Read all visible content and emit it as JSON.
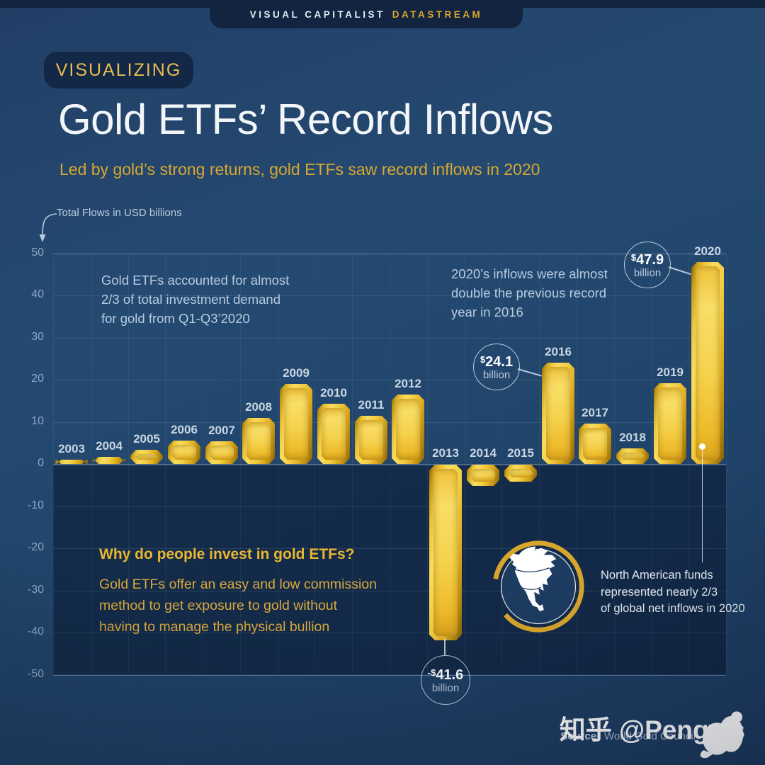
{
  "masthead": {
    "brand": "VISUAL CAPITALIST",
    "suffix": "DATASTREAM"
  },
  "header": {
    "badge": "VISUALIZING",
    "title": "Gold ETFs’ Record Inflows",
    "subtitle": "Led by gold’s strong returns, gold ETFs saw record inflows in 2020"
  },
  "axis_label": "Total Flows in USD billions",
  "annotations": {
    "demand": {
      "lines": [
        "Gold ETFs accounted for almost",
        "2/3 of total investment demand",
        "for gold from Q1-Q3’2020"
      ]
    },
    "record": {
      "lines": [
        "2020’s inflows were almost",
        "double the previous record",
        "year in 2016"
      ]
    },
    "why": {
      "heading": "Why do people invest in gold ETFs?",
      "lines": [
        "Gold ETFs offer an easy and low commission",
        "method to get exposure to gold without",
        "having to manage the physical bullion"
      ]
    },
    "north_america": {
      "lines": [
        "North American funds",
        "represented nearly 2/3",
        "of global net inflows in 2020"
      ]
    }
  },
  "callouts": {
    "y2020": {
      "currency": "$",
      "amount": "47.9",
      "unit": "billion"
    },
    "y2016": {
      "currency": "$",
      "amount": "24.1",
      "unit": "billion"
    },
    "y2013": {
      "currency": "-$",
      "amount": "41.6",
      "unit": "billion"
    }
  },
  "footer": {
    "source_label": "Source:",
    "source": "World Gold Council",
    "watermark": "知乎 @PengyIs"
  },
  "colors": {
    "gold": "#e8b435",
    "background": "#22456b",
    "dark_navy": "#122440",
    "negative_band": "#16304e",
    "light_blue_text": "#b6cbe0",
    "white_text": "#f3f6f9"
  },
  "chart_data": {
    "type": "bar",
    "title": "Gold ETFs’ Record Inflows",
    "subtitle": "Led by gold’s strong returns, gold ETFs saw record inflows in 2020",
    "ylabel": "Total Flows in USD billions",
    "ylim": [
      -50,
      50
    ],
    "yticks": [
      50,
      40,
      30,
      20,
      10,
      0,
      -10,
      -20,
      -30,
      -40,
      -50
    ],
    "grid": true,
    "legend": false,
    "categories": [
      "2003",
      "2004",
      "2005",
      "2006",
      "2007",
      "2008",
      "2009",
      "2010",
      "2011",
      "2012",
      "2013",
      "2014",
      "2015",
      "2016",
      "2017",
      "2018",
      "2019",
      "2020"
    ],
    "values": [
      1.0,
      1.6,
      3.4,
      5.6,
      5.3,
      10.9,
      19.0,
      14.3,
      11.4,
      16.5,
      -41.6,
      -5.0,
      -4.0,
      24.1,
      9.6,
      3.7,
      19.2,
      47.9
    ],
    "data_labels": {
      "2020": "$47.9 billion",
      "2016": "$24.1 billion",
      "2013": "-$41.6 billion"
    },
    "units": "USD billions",
    "source": "World Gold Council"
  }
}
